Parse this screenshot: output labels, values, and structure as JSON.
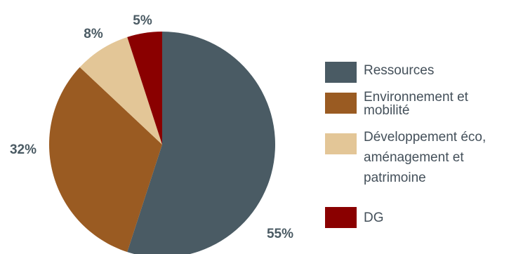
{
  "chart_data": {
    "type": "pie",
    "series": [
      {
        "label": "Ressources",
        "value": 55,
        "value_label": "55%",
        "color": "#4a5b64"
      },
      {
        "label": "Environnement et mobilité",
        "value": 32,
        "value_label": "32%",
        "color": "#9a5b22"
      },
      {
        "label": "Développement éco, aménagement et patrimoine",
        "value": 8,
        "value_label": "8%",
        "color": "#e3c697"
      },
      {
        "label": "DG",
        "value": 5,
        "value_label": "5%",
        "color": "#8a0000"
      }
    ],
    "legend_position": "right",
    "start_angle_deg": 0,
    "direction": "clockwise"
  }
}
